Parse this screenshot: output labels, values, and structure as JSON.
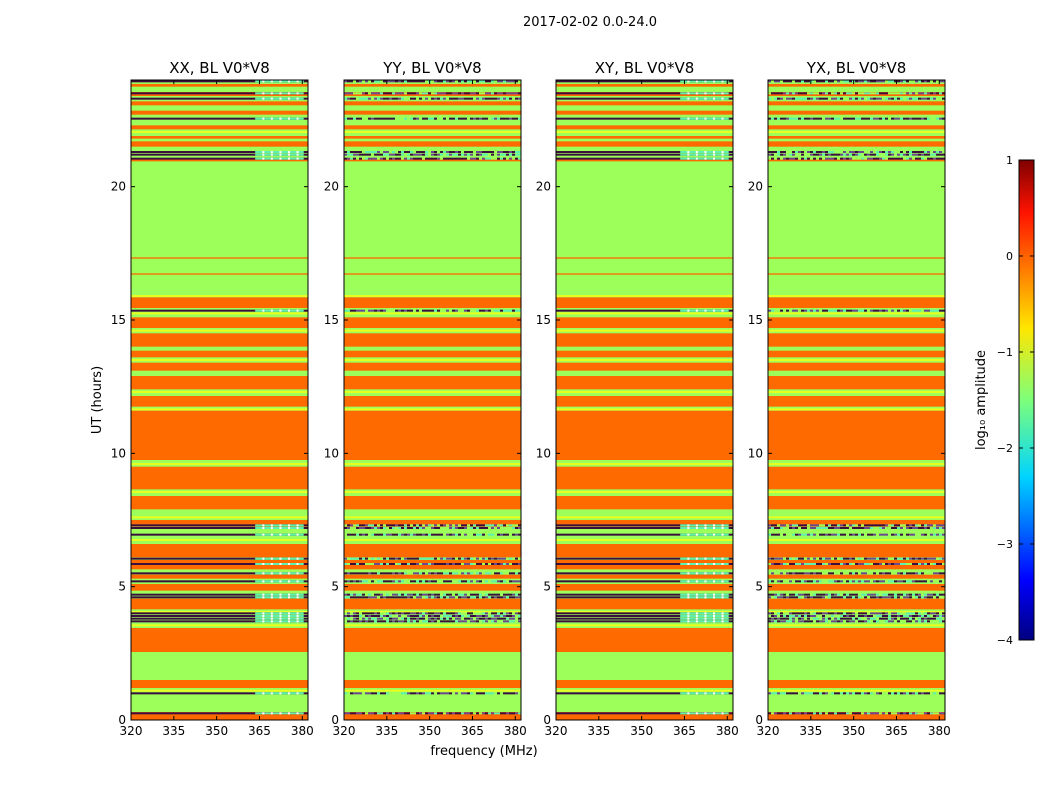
{
  "figure": {
    "suptitle": "2017-02-02 0.0-24.0",
    "ylabel": "UT (hours)",
    "xlabel": "frequency (MHz)"
  },
  "colors": {
    "orange": "#ff6a00",
    "green": "#9cff5a",
    "yellow": "#e8ff22",
    "dark": "#3a0f3e",
    "purple": "#6a4a8c",
    "cyan": "#5ff0b0"
  },
  "chart_data": [
    {
      "type": "heatmap",
      "title": "XX, BL V0*V8",
      "xlim": [
        320,
        382
      ],
      "ylim": [
        0,
        24
      ],
      "xticks": [
        "320",
        "335",
        "350",
        "365",
        "380"
      ],
      "yticks": [
        "0",
        "5",
        "10",
        "15",
        "20"
      ],
      "pattern": "masked-lines"
    },
    {
      "type": "heatmap",
      "title": "YY, BL V0*V8",
      "xlim": [
        320,
        382
      ],
      "ylim": [
        0,
        24
      ],
      "xticks": [
        "320",
        "335",
        "350",
        "365",
        "380"
      ],
      "yticks": [
        "0",
        "5",
        "10",
        "15",
        "20"
      ],
      "pattern": "noise-lines"
    },
    {
      "type": "heatmap",
      "title": "XY, BL V0*V8",
      "xlim": [
        320,
        382
      ],
      "ylim": [
        0,
        24
      ],
      "xticks": [
        "320",
        "335",
        "350",
        "365",
        "380"
      ],
      "yticks": [
        "0",
        "5",
        "10",
        "15",
        "20"
      ],
      "pattern": "masked-lines"
    },
    {
      "type": "heatmap",
      "title": "YX, BL V0*V8",
      "xlim": [
        320,
        382
      ],
      "ylim": [
        0,
        24
      ],
      "xticks": [
        "320",
        "335",
        "350",
        "365",
        "380"
      ],
      "yticks": [
        "0",
        "5",
        "10",
        "15",
        "20"
      ],
      "pattern": "noise-lines"
    }
  ],
  "bands": [
    {
      "y0": 0.0,
      "y1": 0.3,
      "c": "orange"
    },
    {
      "y0": 1.2,
      "y1": 1.5,
      "c": "orange"
    },
    {
      "y0": 2.55,
      "y1": 3.45,
      "c": "orange"
    },
    {
      "y0": 4.15,
      "y1": 4.55,
      "c": "orange"
    },
    {
      "y0": 4.85,
      "y1": 5.1,
      "c": "orange"
    },
    {
      "y0": 5.3,
      "y1": 5.45,
      "c": "orange"
    },
    {
      "y0": 5.65,
      "y1": 6.0,
      "c": "orange"
    },
    {
      "y0": 6.1,
      "y1": 6.6,
      "c": "orange"
    },
    {
      "y0": 7.25,
      "y1": 7.5,
      "c": "orange"
    },
    {
      "y0": 7.9,
      "y1": 8.4,
      "c": "orange"
    },
    {
      "y0": 8.65,
      "y1": 9.5,
      "c": "orange"
    },
    {
      "y0": 9.75,
      "y1": 11.6,
      "c": "orange"
    },
    {
      "y0": 11.75,
      "y1": 12.15,
      "c": "orange"
    },
    {
      "y0": 12.4,
      "y1": 12.9,
      "c": "orange"
    },
    {
      "y0": 13.1,
      "y1": 13.4,
      "c": "orange"
    },
    {
      "y0": 13.6,
      "y1": 13.85,
      "c": "orange"
    },
    {
      "y0": 14.0,
      "y1": 14.5,
      "c": "orange"
    },
    {
      "y0": 14.7,
      "y1": 15.1,
      "c": "orange"
    },
    {
      "y0": 15.45,
      "y1": 15.85,
      "c": "orange"
    },
    {
      "y0": 16.7,
      "y1": 16.75,
      "c": "orange"
    },
    {
      "y0": 17.3,
      "y1": 17.35,
      "c": "orange"
    },
    {
      "y0": 20.95,
      "y1": 21.05,
      "c": "orange"
    },
    {
      "y0": 21.5,
      "y1": 21.7,
      "c": "orange"
    },
    {
      "y0": 21.8,
      "y1": 21.9,
      "c": "orange"
    },
    {
      "y0": 22.15,
      "y1": 22.3,
      "c": "orange"
    },
    {
      "y0": 22.7,
      "y1": 22.85,
      "c": "orange"
    },
    {
      "y0": 23.05,
      "y1": 23.2,
      "c": "orange"
    },
    {
      "y0": 23.4,
      "y1": 23.55,
      "c": "orange"
    },
    {
      "y0": 23.75,
      "y1": 23.85,
      "c": "orange"
    }
  ],
  "yellow_lines": [
    1.1,
    3.55,
    4.05,
    6.75,
    7.6,
    8.55,
    9.6,
    11.65,
    12.3,
    13.5,
    14.6,
    15.25,
    15.9,
    22.05
  ],
  "dark_lines": [
    0.25,
    1.0,
    3.7,
    3.8,
    3.9,
    4.0,
    4.6,
    4.7,
    5.2,
    5.5,
    5.85,
    6.05,
    6.95,
    7.2,
    7.3,
    15.35,
    21.05,
    21.2,
    21.3,
    22.55,
    23.3,
    23.5,
    23.95
  ],
  "colorbar": {
    "label": "log₁₀ amplitude",
    "ticks": [
      "1",
      "0",
      "−1",
      "−2",
      "−3",
      "−4"
    ]
  }
}
